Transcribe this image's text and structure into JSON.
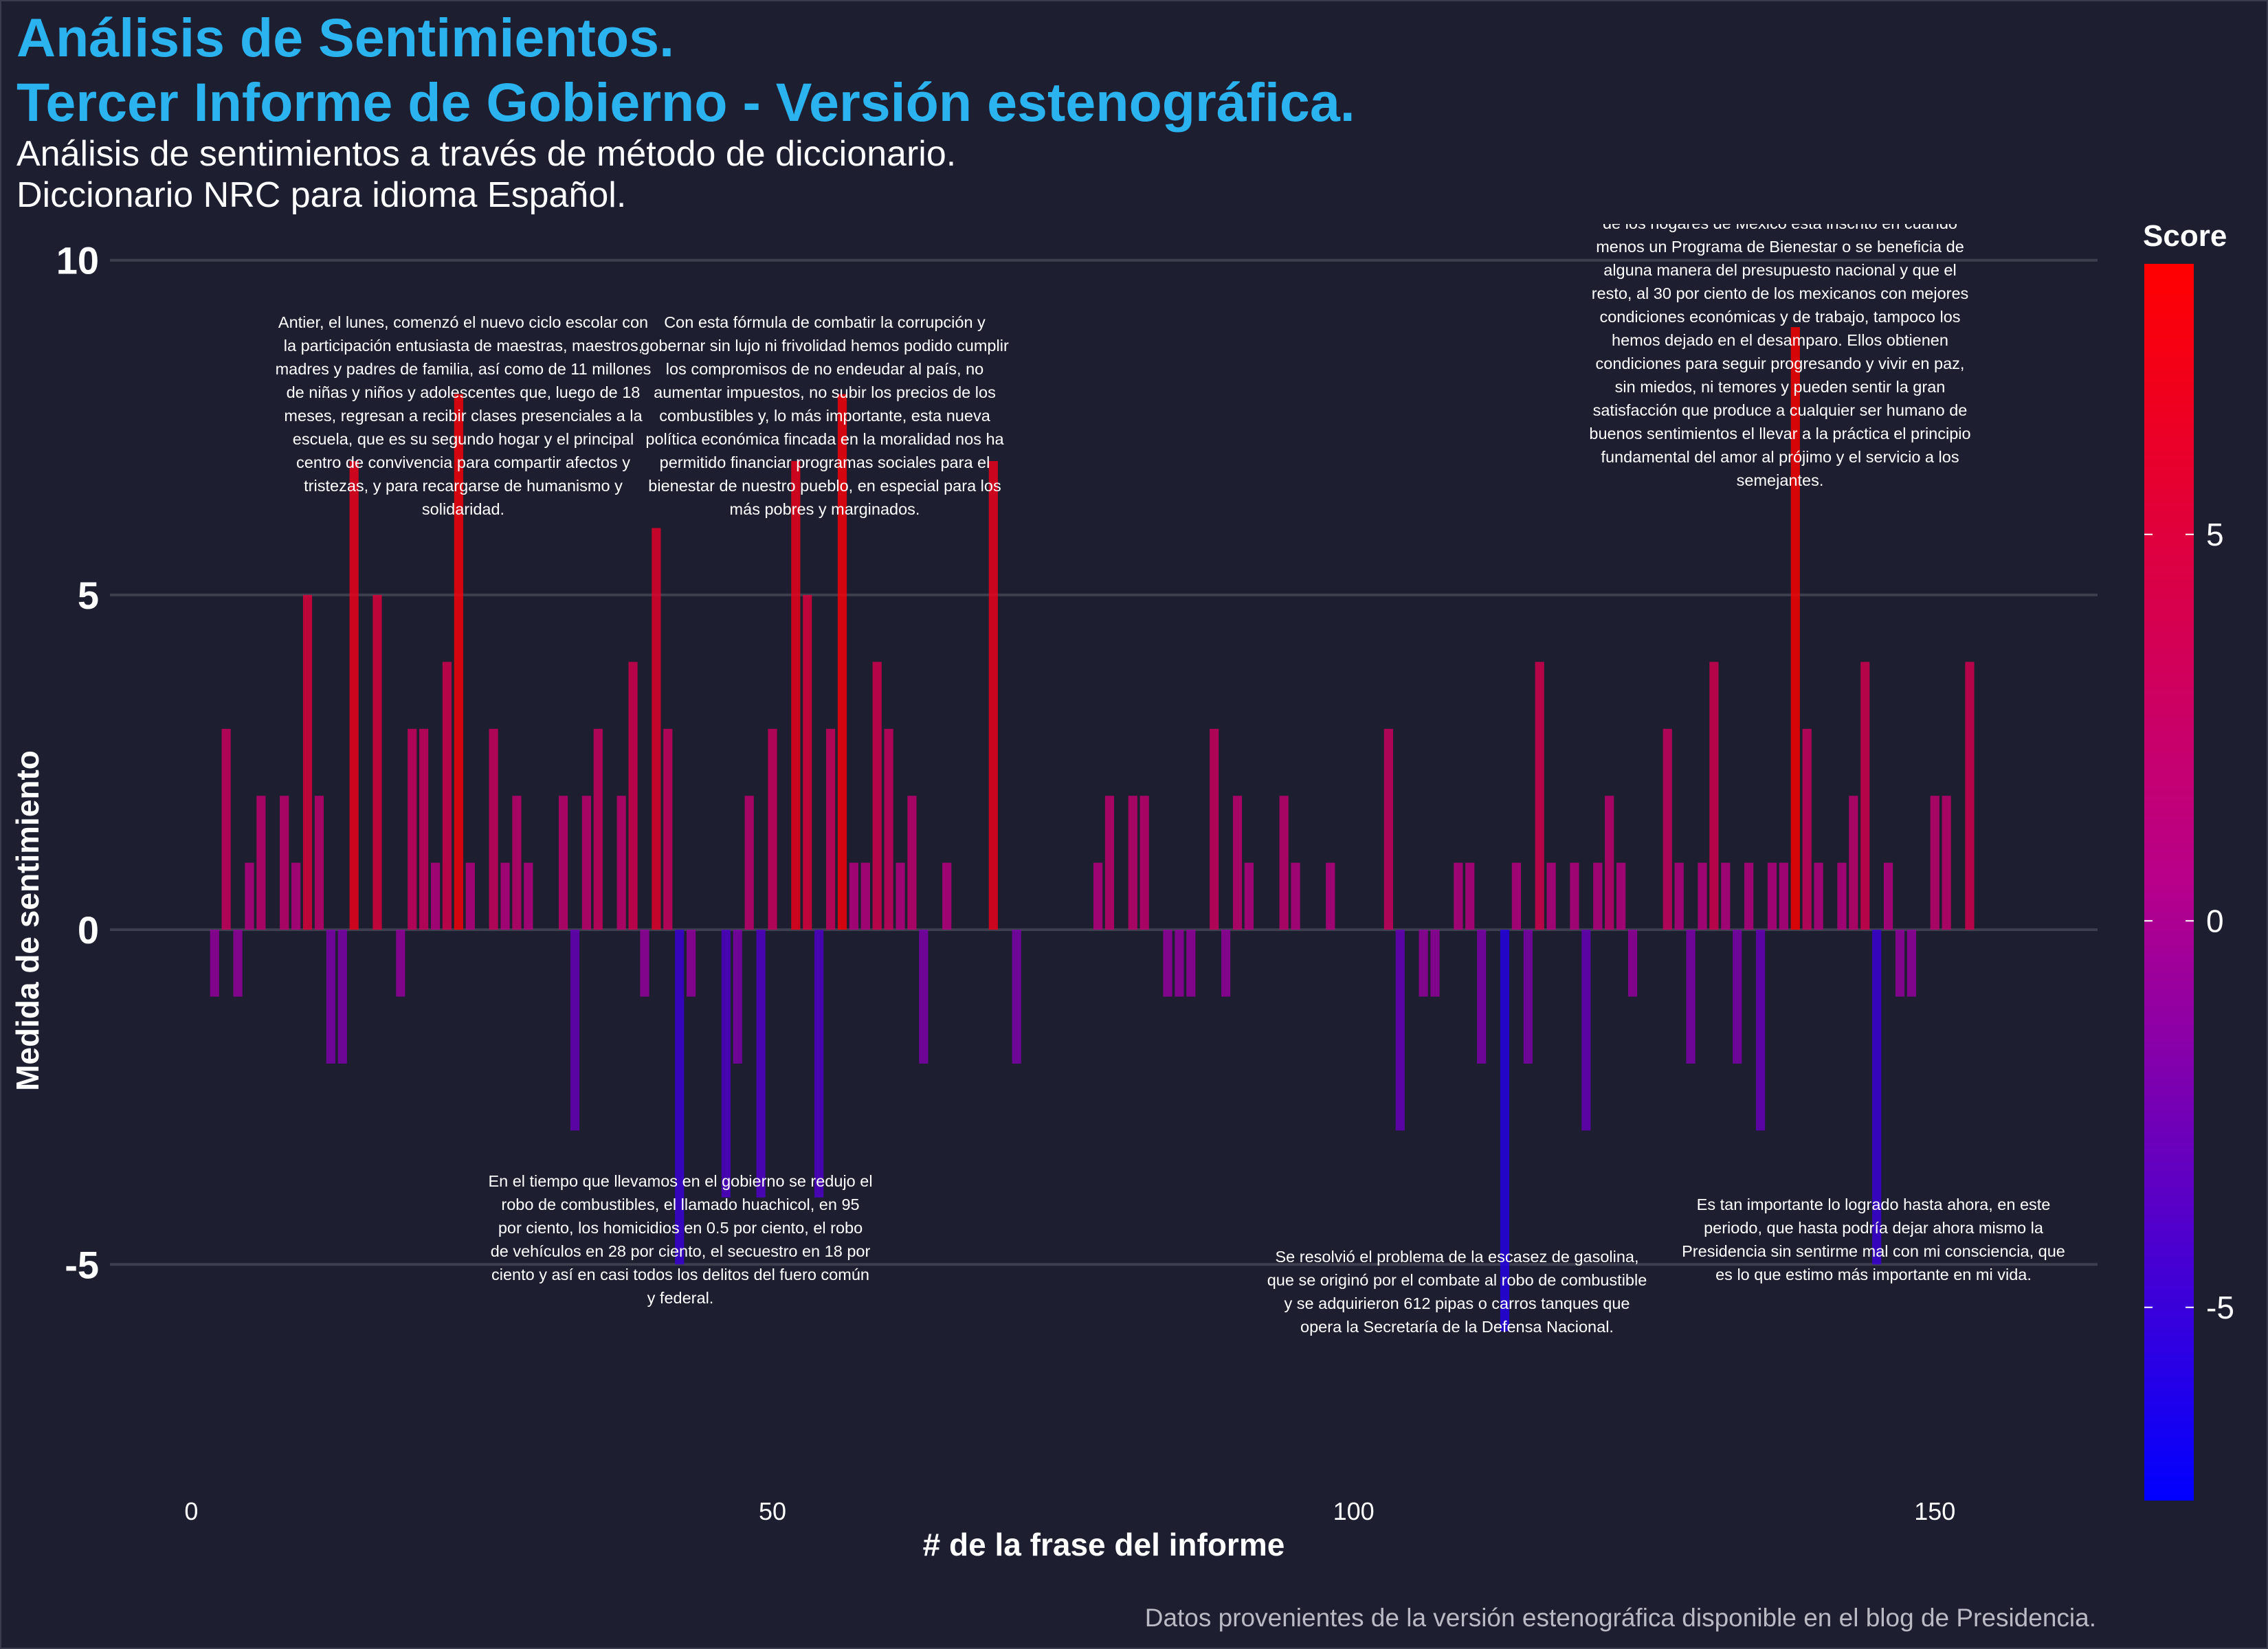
{
  "header": {
    "title_line1": "Análisis de Sentimientos.",
    "title_line2": "Tercer Informe de Gobierno - Versión estenográfica.",
    "subtitle_line1": "Análisis de sentimientos a través de método de diccionario.",
    "subtitle_line2": "Diccionario NRC para idioma Español."
  },
  "caption": "Datos provenientes de la versión estenográfica disponible en el blog de Presidencia.",
  "legend": {
    "title": "Score",
    "ticks": [
      "5",
      "0",
      "-5"
    ]
  },
  "colors": {
    "background": "#1d1e30",
    "title": "#2bb3f0",
    "low": "#0000ff",
    "mid": "#a0008f",
    "high": "#ff0000",
    "gridline": "#3d3e4e"
  },
  "chart_data": {
    "type": "bar",
    "xlabel": "# de la frase del informe",
    "ylabel": "Medida de sentimiento",
    "xlim": [
      -7,
      164
    ],
    "ylim": [
      -9,
      10.5
    ],
    "x_ticks": [
      "0",
      "50",
      "100",
      "150"
    ],
    "y_ticks": [
      "10",
      "5",
      "0",
      "-5"
    ],
    "color_scale": {
      "name": "Score",
      "min": -7.5,
      "max": 8.5
    },
    "x": [
      2,
      3,
      4,
      5,
      6,
      8,
      9,
      10,
      11,
      12,
      13,
      14,
      16,
      18,
      19,
      20,
      21,
      22,
      23,
      24,
      26,
      27,
      28,
      29,
      32,
      33,
      34,
      35,
      37,
      38,
      39,
      40,
      41,
      42,
      43,
      46,
      47,
      48,
      49,
      50,
      52,
      53,
      54,
      55,
      56,
      57,
      58,
      59,
      60,
      61,
      62,
      63,
      65,
      69,
      71,
      78,
      79,
      81,
      82,
      84,
      85,
      86,
      88,
      89,
      90,
      91,
      94,
      95,
      98,
      103,
      104,
      106,
      107,
      109,
      110,
      111,
      113,
      114,
      115,
      116,
      117,
      119,
      120,
      121,
      122,
      123,
      124,
      127,
      128,
      129,
      130,
      131,
      132,
      133,
      134,
      135,
      136,
      137,
      138,
      139,
      140,
      142,
      143,
      144,
      145,
      146,
      147,
      148,
      150,
      151,
      153
    ],
    "values": [
      -1,
      3,
      -1,
      1,
      2,
      2,
      1,
      5,
      2,
      -2,
      -2,
      7,
      5,
      -1,
      3,
      3,
      1,
      4,
      8,
      1,
      3,
      1,
      2,
      1,
      2,
      -3,
      2,
      3,
      2,
      4,
      -1,
      6,
      3,
      -5,
      -1,
      -4,
      -2,
      2,
      -4,
      3,
      7,
      5,
      -4,
      3,
      8,
      1,
      1,
      4,
      3,
      1,
      2,
      -2,
      1,
      7,
      -2,
      1,
      2,
      2,
      2,
      -1,
      -1,
      -1,
      3,
      -1,
      2,
      1,
      2,
      1,
      1,
      3,
      -3,
      -1,
      -1,
      1,
      1,
      -2,
      -6,
      1,
      -2,
      4,
      1,
      1,
      -3,
      1,
      2,
      1,
      -1,
      3,
      1,
      -2,
      1,
      4,
      1,
      -2,
      1,
      -3,
      1,
      1,
      9,
      3,
      1,
      1,
      2,
      4,
      -5,
      1,
      -1,
      -1,
      2,
      2,
      4
    ],
    "annotations": [
      "Antier, el lunes, comenzó el nuevo ciclo escolar con la participación entusiasta de maestras, maestros, madres y padres de familia, así como de 11 millones de niñas y niños y adolescentes que, luego de 18 meses, regresan a recibir clases presenciales a la escuela, que es su segundo hogar y el principal centro de convivencia para compartir afectos y tristezas, y para recargarse de humanismo y solidaridad.",
      "Con esta fórmula de combatir la corrupción y gobernar sin lujo ni frivolidad hemos podido cumplir los compromisos de no endeudar al país, no aumentar impuestos, no subir los precios de los combustibles y, lo más importante, esta nueva política económica fincada en la moralidad nos ha permitido financiar programas sociales para el bienestar de nuestro pueblo, en especial para los más pobres y marginados.",
      "de los hogares de México está inscrito en cuando menos un Programa de Bienestar o se beneficia de alguna manera del presupuesto nacional y que el resto, al 30 por ciento de los mexicanos con mejores condiciones económicas y de trabajo, tampoco los hemos dejado en el desamparo. Ellos obtienen condiciones para seguir progresando y vivir en paz, sin miedos, ni temores y pueden sentir la gran satisfacción que produce a cualquier ser humano de buenos sentimientos el llevar a la práctica el principio fundamental del amor al prójimo y el servicio a los semejantes.",
      "En el tiempo que llevamos en el gobierno se redujo el robo de combustibles, el llamado huachicol, en 95 por ciento, los homicidios en 0.5 por ciento, el robo de vehículos en 28 por ciento, el secuestro en 18 por ciento y así en casi todos los delitos del fuero común y federal.",
      "Se resolvió el problema de la escasez de gasolina, que se originó por el combate al robo de combustible y se adquirieron 612 pipas o carros tanques que opera la Secretaría de la Defensa Nacional.",
      "Es tan importante lo logrado hasta ahora, en este periodo, que hasta podría dejar ahora mismo la Presidencia sin sentirme mal con mi consciencia, que es lo que estimo más importante en mi vida."
    ]
  }
}
